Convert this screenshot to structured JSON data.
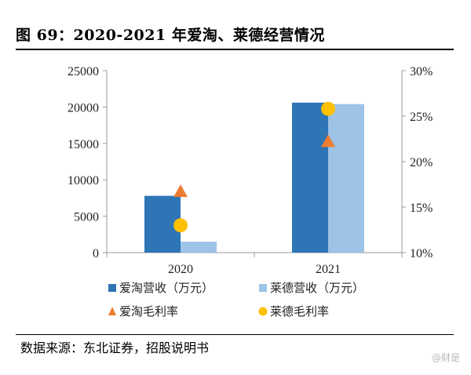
{
  "title": "图 69：2020-2021 年爱淘、莱德经营情况",
  "source": "数据来源：东北证券，招股说明书",
  "watermark": "@财是",
  "colors": {
    "aitao_revenue": "#2e75b6",
    "laide_revenue": "#9dc3e6",
    "aitao_margin": "#ed7d31",
    "laide_margin": "#ffc000"
  },
  "chart_data": {
    "type": "bar",
    "categories": [
      "2020",
      "2021"
    ],
    "y_left": {
      "ticks": [
        "0",
        "5000",
        "10000",
        "15000",
        "20000",
        "25000"
      ],
      "ylim": [
        0,
        25000
      ]
    },
    "y_right": {
      "ticks": [
        "10%",
        "15%",
        "20%",
        "25%",
        "30%"
      ],
      "ylim": [
        10,
        30
      ]
    },
    "series": [
      {
        "name": "爱淘营收（万元）",
        "kind": "bar",
        "axis": "left",
        "color": "#2e75b6",
        "values": [
          7800,
          20600
        ]
      },
      {
        "name": "莱德营收（万元）",
        "kind": "bar",
        "axis": "left",
        "color": "#9dc3e6",
        "values": [
          1500,
          20400
        ]
      },
      {
        "name": "爱淘毛利率",
        "kind": "triangle",
        "axis": "right",
        "color": "#ed7d31",
        "values": [
          16.8,
          22.3
        ]
      },
      {
        "name": "莱德毛利率",
        "kind": "circle",
        "axis": "right",
        "color": "#ffc000",
        "values": [
          13.0,
          25.8
        ]
      }
    ],
    "legend_position": "bottom",
    "grid": false
  }
}
